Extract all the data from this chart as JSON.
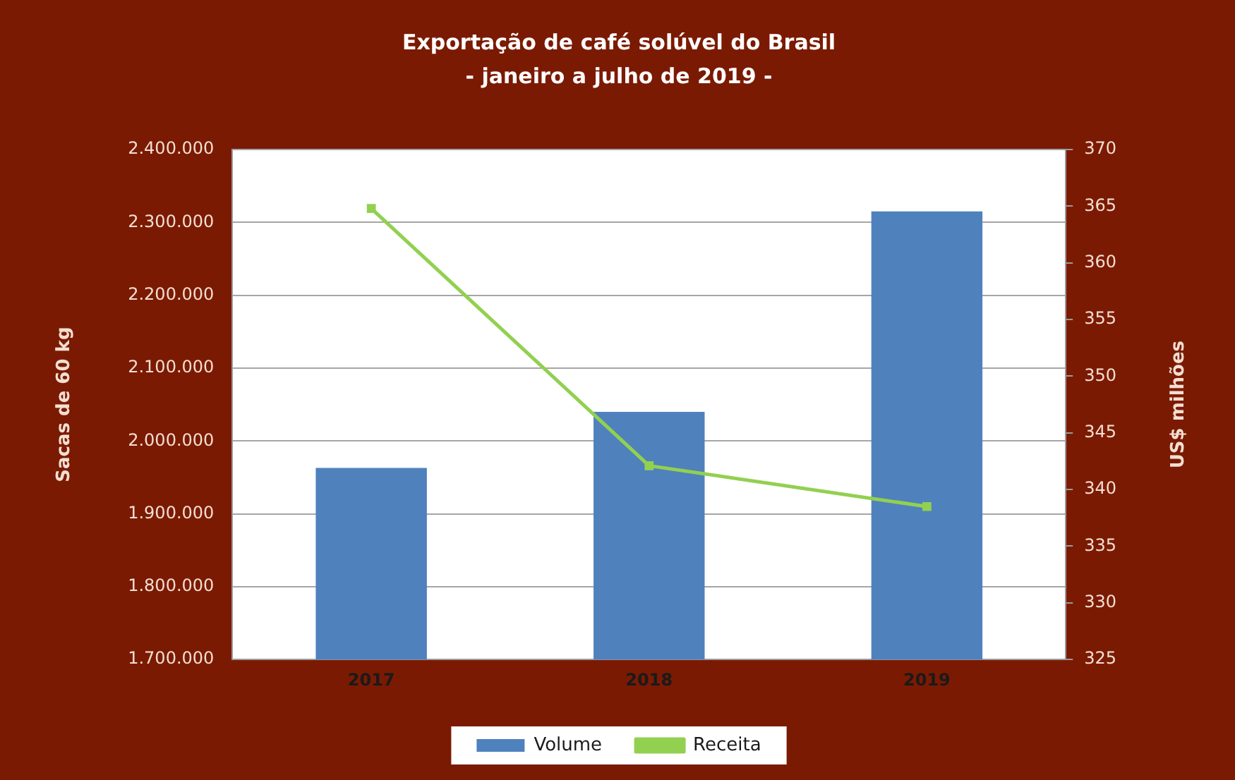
{
  "chart_data": {
    "type": "bar",
    "title": "Exportação de café solúvel do Brasil",
    "subtitle": "- janeiro a julho de 2019 -",
    "ylabel": "Sacas de 60 kg",
    "y2label": "US$ milhões",
    "categories": [
      "2017",
      "2018",
      "2019"
    ],
    "series": [
      {
        "name": "Volume",
        "color": "#4f81bd",
        "values": [
          1963000,
          2040000,
          2315000
        ]
      },
      {
        "name": "Receita",
        "type": "line",
        "axis": "y2",
        "color": "#92d050",
        "values": [
          364.8,
          342.1,
          338.5
        ]
      }
    ],
    "ylim": [
      1700000,
      2400000
    ],
    "yticks": [
      {
        "value": 1700000,
        "label": "1.700.000"
      },
      {
        "value": 1800000,
        "label": "1.800.000"
      },
      {
        "value": 1900000,
        "label": "1.900.000"
      },
      {
        "value": 2000000,
        "label": "2.000.000"
      },
      {
        "value": 2100000,
        "label": "2.100.000"
      },
      {
        "value": 2200000,
        "label": "2.200.000"
      },
      {
        "value": 2300000,
        "label": "2.300.000"
      },
      {
        "value": 2400000,
        "label": "2.400.000"
      }
    ],
    "y2lim": [
      325,
      370
    ],
    "y2ticks": [
      325,
      330,
      335,
      340,
      345,
      350,
      355,
      360,
      365,
      370
    ],
    "grid": "y",
    "legend": "bottom",
    "marker": "square"
  }
}
